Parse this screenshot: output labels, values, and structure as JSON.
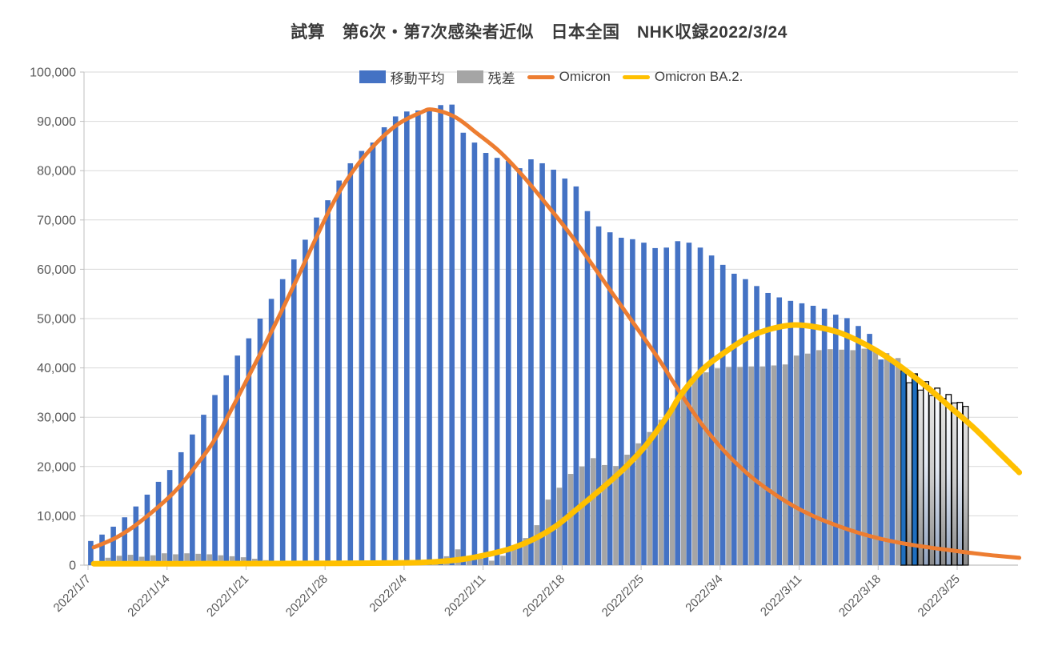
{
  "title": "試算　第6次・第7次感染者近似　日本全国　NHK収録2022/3/24",
  "legend": [
    {
      "label": "移動平均",
      "swatch": "rect",
      "color": "#4472C4"
    },
    {
      "label": "残差",
      "swatch": "rect",
      "color": "#A5A5A5"
    },
    {
      "label": "Omicron",
      "swatch": "line",
      "color": "#ED7D31"
    },
    {
      "label": "Omicron BA.2.",
      "swatch": "line",
      "color": "#FFC000"
    }
  ],
  "colors": {
    "bar_blue": "#4472C4",
    "bar_gray": "#A5A5A5",
    "line_orange": "#ED7D31",
    "line_yellow": "#FFC000",
    "forecast_navy": "#1F6FBF",
    "gridline": "#D9D9D9",
    "axis_line": "#BFBFBF",
    "axis_text": "#595959",
    "title_text": "#3A3A3A",
    "forecast_outline": "#000000"
  },
  "chart_data": {
    "type": "bar",
    "note": "daily bars starting 2022/1/7, weekly axis labels; two line overlays",
    "start_date": "2022/1/7",
    "x_tick_labels": [
      "2022/1/7",
      "2022/1/14",
      "2022/1/21",
      "2022/1/28",
      "2022/2/4",
      "2022/2/11",
      "2022/2/18",
      "2022/2/25",
      "2022/3/4",
      "2022/3/11",
      "2022/3/18",
      "2022/3/25"
    ],
    "y_tick_labels": [
      "0",
      "10,000",
      "20,000",
      "30,000",
      "40,000",
      "50,000",
      "60,000",
      "70,000",
      "80,000",
      "90,000",
      "100,000"
    ],
    "ylim": [
      0,
      100000
    ],
    "ytick_step": 10000,
    "grid": true,
    "legend_position": "top",
    "series": [
      {
        "name": "移動平均",
        "kind": "bar",
        "color": "#4472C4",
        "values": [
          4900,
          6200,
          7800,
          9700,
          11900,
          14300,
          16900,
          19300,
          22900,
          26500,
          30500,
          34500,
          38500,
          42500,
          46000,
          50000,
          54000,
          58000,
          62000,
          66000,
          70500,
          74000,
          78000,
          81500,
          84000,
          85700,
          88800,
          91000,
          92000,
          92200,
          92600,
          93300,
          93400,
          87700,
          85700,
          83600,
          82600,
          82000,
          80500,
          82300,
          81500,
          80200,
          78400,
          76800,
          71800,
          68700,
          67500,
          66400,
          66100,
          65400,
          64300,
          64400,
          65700,
          65400,
          64400,
          62800,
          60900,
          59100,
          58000,
          56600,
          55200,
          54300,
          53600,
          53100,
          52600,
          52000,
          50800,
          50100,
          48500,
          46900,
          41700,
          41400,
          39400,
          38800,
          37200,
          35900,
          34600,
          33000
        ],
        "styles": [
          "solid",
          "solid",
          "solid",
          "solid",
          "solid",
          "solid",
          "solid",
          "solid",
          "solid",
          "solid",
          "solid",
          "solid",
          "solid",
          "solid",
          "solid",
          "solid",
          "solid",
          "solid",
          "solid",
          "solid",
          "solid",
          "solid",
          "solid",
          "solid",
          "solid",
          "solid",
          "solid",
          "solid",
          "solid",
          "solid",
          "solid",
          "solid",
          "solid",
          "solid",
          "solid",
          "solid",
          "solid",
          "solid",
          "solid",
          "solid",
          "solid",
          "solid",
          "solid",
          "solid",
          "solid",
          "solid",
          "solid",
          "solid",
          "solid",
          "solid",
          "solid",
          "solid",
          "solid",
          "solid",
          "solid",
          "solid",
          "solid",
          "solid",
          "solid",
          "solid",
          "solid",
          "solid",
          "solid",
          "solid",
          "solid",
          "solid",
          "solid",
          "solid",
          "solid",
          "solid",
          "solid",
          "solid",
          "navy",
          "navy",
          "white",
          "white",
          "white",
          "white"
        ]
      },
      {
        "name": "残差",
        "kind": "bar",
        "color": "#A5A5A5",
        "values": [
          800,
          1500,
          1900,
          2100,
          1700,
          2000,
          2400,
          2200,
          2400,
          2300,
          2200,
          2000,
          1800,
          1600,
          1300,
          1000,
          800,
          600,
          500,
          400,
          350,
          300,
          300,
          250,
          250,
          250,
          300,
          300,
          350,
          400,
          600,
          1800,
          3200,
          1000,
          1300,
          900,
          1900,
          3600,
          5500,
          8100,
          13300,
          15700,
          18500,
          20000,
          21700,
          20300,
          20100,
          22400,
          24700,
          27000,
          29500,
          31500,
          35400,
          37800,
          39100,
          39900,
          40200,
          40200,
          40300,
          40300,
          40500,
          40700,
          42500,
          42900,
          43600,
          43800,
          43700,
          43600,
          43900,
          44000,
          43000,
          42000,
          37000,
          35500,
          34400,
          33800,
          32900,
          32200
        ],
        "styles": [
          "solid",
          "solid",
          "solid",
          "solid",
          "solid",
          "solid",
          "solid",
          "solid",
          "solid",
          "solid",
          "solid",
          "solid",
          "solid",
          "solid",
          "solid",
          "solid",
          "solid",
          "solid",
          "solid",
          "solid",
          "solid",
          "solid",
          "solid",
          "solid",
          "solid",
          "solid",
          "solid",
          "solid",
          "solid",
          "solid",
          "solid",
          "solid",
          "solid",
          "solid",
          "solid",
          "solid",
          "solid",
          "solid",
          "solid",
          "solid",
          "solid",
          "solid",
          "solid",
          "solid",
          "solid",
          "solid",
          "solid",
          "solid",
          "solid",
          "solid",
          "solid",
          "solid",
          "solid",
          "solid",
          "solid",
          "solid",
          "solid",
          "solid",
          "solid",
          "solid",
          "solid",
          "solid",
          "solid",
          "solid",
          "solid",
          "solid",
          "solid",
          "solid",
          "solid",
          "solid",
          "solid",
          "solid",
          "outline",
          "outline",
          "outline",
          "outline",
          "outline",
          "outline"
        ]
      },
      {
        "name": "Omicron",
        "kind": "line",
        "color": "#ED7D31",
        "points": [
          [
            0,
            3600
          ],
          [
            2,
            5600
          ],
          [
            4,
            8600
          ],
          [
            7,
            14500
          ],
          [
            9,
            20000
          ],
          [
            11,
            26500
          ],
          [
            14,
            39500
          ],
          [
            16,
            48500
          ],
          [
            18,
            58000
          ],
          [
            21,
            72500
          ],
          [
            23,
            80000
          ],
          [
            25,
            85500
          ],
          [
            27,
            89500
          ],
          [
            29,
            91800
          ],
          [
            30,
            92400
          ],
          [
            32,
            90900
          ],
          [
            34,
            87500
          ],
          [
            36,
            83800
          ],
          [
            38,
            79000
          ],
          [
            40,
            73500
          ],
          [
            42,
            67800
          ],
          [
            44,
            61500
          ],
          [
            46,
            55000
          ],
          [
            48,
            48500
          ],
          [
            50,
            42000
          ],
          [
            52,
            34800
          ],
          [
            54,
            28200
          ],
          [
            56,
            22800
          ],
          [
            58,
            18400
          ],
          [
            60,
            14900
          ],
          [
            62,
            12000
          ],
          [
            64,
            9700
          ],
          [
            66,
            7900
          ],
          [
            68,
            6400
          ],
          [
            70,
            5200
          ],
          [
            72,
            4300
          ],
          [
            74,
            3600
          ],
          [
            76,
            3000
          ],
          [
            78,
            2400
          ],
          [
            80,
            1900
          ],
          [
            82,
            1500
          ]
        ]
      },
      {
        "name": "Omicron BA.2.",
        "kind": "line",
        "color": "#FFC000",
        "points": [
          [
            0,
            300
          ],
          [
            8,
            300
          ],
          [
            16,
            330
          ],
          [
            22,
            380
          ],
          [
            26,
            430
          ],
          [
            29,
            520
          ],
          [
            31,
            800
          ],
          [
            33,
            1300
          ],
          [
            35,
            2200
          ],
          [
            37,
            3400
          ],
          [
            39,
            5300
          ],
          [
            41,
            8000
          ],
          [
            43,
            11700
          ],
          [
            45,
            15500
          ],
          [
            47,
            19600
          ],
          [
            49,
            24500
          ],
          [
            51,
            30800
          ],
          [
            52,
            34500
          ],
          [
            54,
            39800
          ],
          [
            56,
            43300
          ],
          [
            58,
            46200
          ],
          [
            60,
            47900
          ],
          [
            62,
            48700
          ],
          [
            64,
            48300
          ],
          [
            66,
            47200
          ],
          [
            68,
            45200
          ],
          [
            70,
            42600
          ],
          [
            72,
            39400
          ],
          [
            74,
            35800
          ],
          [
            76,
            31800
          ],
          [
            78,
            27800
          ],
          [
            80,
            23300
          ],
          [
            82,
            18800
          ]
        ]
      }
    ]
  }
}
